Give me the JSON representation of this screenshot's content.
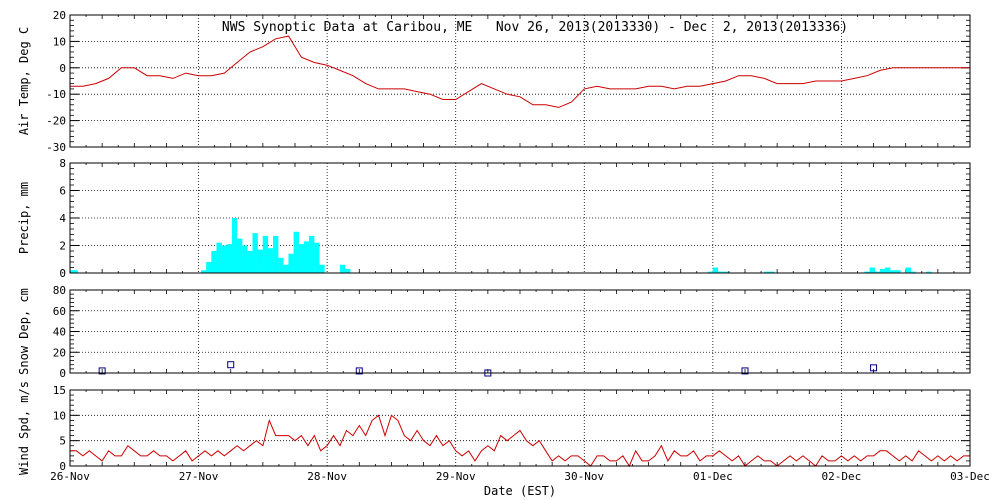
{
  "chart_data": {
    "type": "timeseries-panels",
    "title": "NWS Synoptic Data at Caribou, ME   Nov 26, 2013(2013330) - Dec  2, 2013(2013336)",
    "xlabel": "Date (EST)",
    "x_ticks": [
      "26-Nov",
      "27-Nov",
      "28-Nov",
      "29-Nov",
      "30-Nov",
      "01-Dec",
      "02-Dec",
      "03-Dec"
    ],
    "x_range_days": [
      0,
      7
    ],
    "panels": [
      {
        "id": "airtemp",
        "type": "line",
        "ylabel": "Air Temp, Deg C",
        "ylim": [
          -30,
          20
        ],
        "yticks": [
          -30,
          -20,
          -10,
          0,
          10,
          20
        ],
        "color": "#cc0000",
        "x": [
          0,
          0.1,
          0.2,
          0.3,
          0.4,
          0.5,
          0.6,
          0.7,
          0.8,
          0.9,
          1.0,
          1.1,
          1.2,
          1.3,
          1.4,
          1.5,
          1.6,
          1.7,
          1.8,
          1.9,
          2.0,
          2.1,
          2.2,
          2.3,
          2.4,
          2.5,
          2.6,
          2.7,
          2.8,
          2.9,
          3.0,
          3.1,
          3.2,
          3.3,
          3.4,
          3.5,
          3.6,
          3.7,
          3.8,
          3.9,
          4.0,
          4.1,
          4.2,
          4.3,
          4.4,
          4.5,
          4.6,
          4.7,
          4.8,
          4.9,
          5.0,
          5.1,
          5.2,
          5.3,
          5.4,
          5.5,
          5.6,
          5.7,
          5.8,
          5.9,
          6.0,
          6.1,
          6.2,
          6.3,
          6.4,
          6.5,
          6.6,
          6.7,
          6.8,
          6.9,
          7.0
        ],
        "y": [
          -7,
          -7,
          -6,
          -4,
          0,
          0,
          -3,
          -3,
          -4,
          -2,
          -3,
          -3,
          -2,
          2,
          6,
          8,
          11,
          12,
          4,
          2,
          1,
          -1,
          -3,
          -6,
          -8,
          -8,
          -8,
          -9,
          -10,
          -12,
          -12,
          -9,
          -6,
          -8,
          -10,
          -11,
          -14,
          -14,
          -15,
          -13,
          -8,
          -7,
          -8,
          -8,
          -8,
          -7,
          -7,
          -8,
          -7,
          -7,
          -6,
          -5,
          -3,
          -3,
          -4,
          -6,
          -6,
          -6,
          -5,
          -5,
          -5,
          -4,
          -3,
          -1,
          0,
          0,
          0,
          0,
          0,
          0,
          0
        ]
      },
      {
        "id": "precip",
        "type": "bar",
        "ylabel": "Precip, mm",
        "ylim": [
          0,
          8
        ],
        "yticks": [
          0,
          2,
          4,
          6,
          8
        ],
        "color": "#00ffff",
        "bar_width_hours": 1,
        "bars": [
          {
            "x": 0.02,
            "v": 0.2
          },
          {
            "x": 0.04,
            "v": 0.2
          },
          {
            "x": 1.04,
            "v": 0.2
          },
          {
            "x": 1.08,
            "v": 0.8
          },
          {
            "x": 1.12,
            "v": 1.6
          },
          {
            "x": 1.16,
            "v": 2.2
          },
          {
            "x": 1.2,
            "v": 2.0
          },
          {
            "x": 1.24,
            "v": 2.1
          },
          {
            "x": 1.28,
            "v": 4.0
          },
          {
            "x": 1.32,
            "v": 2.5
          },
          {
            "x": 1.36,
            "v": 2.0
          },
          {
            "x": 1.4,
            "v": 1.6
          },
          {
            "x": 1.44,
            "v": 2.9
          },
          {
            "x": 1.48,
            "v": 1.7
          },
          {
            "x": 1.52,
            "v": 2.7
          },
          {
            "x": 1.56,
            "v": 1.8
          },
          {
            "x": 1.6,
            "v": 2.7
          },
          {
            "x": 1.64,
            "v": 1.1
          },
          {
            "x": 1.68,
            "v": 0.6
          },
          {
            "x": 1.72,
            "v": 1.4
          },
          {
            "x": 1.76,
            "v": 3.0
          },
          {
            "x": 1.8,
            "v": 2.1
          },
          {
            "x": 1.84,
            "v": 2.3
          },
          {
            "x": 1.88,
            "v": 2.7
          },
          {
            "x": 1.92,
            "v": 2.2
          },
          {
            "x": 1.96,
            "v": 0.6
          },
          {
            "x": 2.12,
            "v": 0.6
          },
          {
            "x": 2.16,
            "v": 0.3
          },
          {
            "x": 4.98,
            "v": 0.1
          },
          {
            "x": 5.02,
            "v": 0.4
          },
          {
            "x": 5.06,
            "v": 0.1
          },
          {
            "x": 5.1,
            "v": 0.1
          },
          {
            "x": 5.42,
            "v": 0.1
          },
          {
            "x": 5.46,
            "v": 0.1
          },
          {
            "x": 6.2,
            "v": 0.1
          },
          {
            "x": 6.24,
            "v": 0.4
          },
          {
            "x": 6.28,
            "v": 0.1
          },
          {
            "x": 6.32,
            "v": 0.3
          },
          {
            "x": 6.36,
            "v": 0.4
          },
          {
            "x": 6.4,
            "v": 0.2
          },
          {
            "x": 6.44,
            "v": 0.2
          },
          {
            "x": 6.52,
            "v": 0.4
          },
          {
            "x": 6.56,
            "v": 0.1
          },
          {
            "x": 6.68,
            "v": 0.1
          }
        ]
      },
      {
        "id": "snowdep",
        "type": "scatter",
        "marker": "square",
        "ylabel": "Snow Dep, cm",
        "ylim": [
          0,
          80
        ],
        "yticks": [
          0,
          20,
          40,
          60,
          80
        ],
        "color": "#000080",
        "x": [
          0.25,
          1.25,
          2.25,
          3.25,
          5.25,
          6.25
        ],
        "y": [
          2,
          8,
          2,
          0,
          2,
          5
        ]
      },
      {
        "id": "windspd",
        "type": "line",
        "ylabel": "Wind Spd, m/s",
        "ylim": [
          0,
          15
        ],
        "yticks": [
          0,
          5,
          10,
          15
        ],
        "color": "#cc0000",
        "x": [
          0,
          0.05,
          0.1,
          0.15,
          0.2,
          0.25,
          0.3,
          0.35,
          0.4,
          0.45,
          0.5,
          0.55,
          0.6,
          0.65,
          0.7,
          0.75,
          0.8,
          0.85,
          0.9,
          0.95,
          1.0,
          1.05,
          1.1,
          1.15,
          1.2,
          1.25,
          1.3,
          1.35,
          1.4,
          1.45,
          1.5,
          1.55,
          1.6,
          1.65,
          1.7,
          1.75,
          1.8,
          1.85,
          1.9,
          1.95,
          2.0,
          2.05,
          2.1,
          2.15,
          2.2,
          2.25,
          2.3,
          2.35,
          2.4,
          2.45,
          2.5,
          2.55,
          2.6,
          2.65,
          2.7,
          2.75,
          2.8,
          2.85,
          2.9,
          2.95,
          3.0,
          3.05,
          3.1,
          3.15,
          3.2,
          3.25,
          3.3,
          3.35,
          3.4,
          3.45,
          3.5,
          3.55,
          3.6,
          3.65,
          3.7,
          3.75,
          3.8,
          3.85,
          3.9,
          3.95,
          4.0,
          4.05,
          4.1,
          4.15,
          4.2,
          4.25,
          4.3,
          4.35,
          4.4,
          4.45,
          4.5,
          4.55,
          4.6,
          4.65,
          4.7,
          4.75,
          4.8,
          4.85,
          4.9,
          4.95,
          5.0,
          5.05,
          5.1,
          5.15,
          5.2,
          5.25,
          5.3,
          5.35,
          5.4,
          5.45,
          5.5,
          5.55,
          5.6,
          5.65,
          5.7,
          5.75,
          5.8,
          5.85,
          5.9,
          5.95,
          6.0,
          6.05,
          6.1,
          6.15,
          6.2,
          6.25,
          6.3,
          6.35,
          6.4,
          6.45,
          6.5,
          6.55,
          6.6,
          6.65,
          6.7,
          6.75,
          6.8,
          6.85,
          6.9,
          6.95,
          7.0
        ],
        "y": [
          3,
          3,
          2,
          3,
          2,
          1,
          3,
          2,
          2,
          4,
          3,
          2,
          2,
          3,
          2,
          2,
          1,
          2,
          3,
          1,
          2,
          3,
          2,
          3,
          2,
          3,
          4,
          3,
          4,
          5,
          4,
          9,
          6,
          6,
          6,
          5,
          6,
          4,
          6,
          3,
          4,
          6,
          4,
          7,
          6,
          8,
          6,
          9,
          10,
          6,
          10,
          9,
          6,
          5,
          7,
          5,
          4,
          6,
          4,
          5,
          3,
          2,
          3,
          1,
          3,
          4,
          3,
          6,
          5,
          6,
          7,
          5,
          4,
          5,
          3,
          1,
          2,
          1,
          2,
          2,
          1,
          0,
          2,
          2,
          1,
          1,
          2,
          0,
          3,
          1,
          1,
          2,
          4,
          1,
          3,
          2,
          2,
          3,
          1,
          2,
          2,
          3,
          2,
          1,
          2,
          0,
          1,
          2,
          1,
          1,
          0,
          1,
          2,
          1,
          2,
          1,
          0,
          2,
          1,
          1,
          2,
          1,
          2,
          1,
          2,
          2,
          3,
          3,
          2,
          1,
          2,
          1,
          3,
          2,
          1,
          2,
          1,
          2,
          1,
          2,
          2
        ]
      }
    ]
  }
}
